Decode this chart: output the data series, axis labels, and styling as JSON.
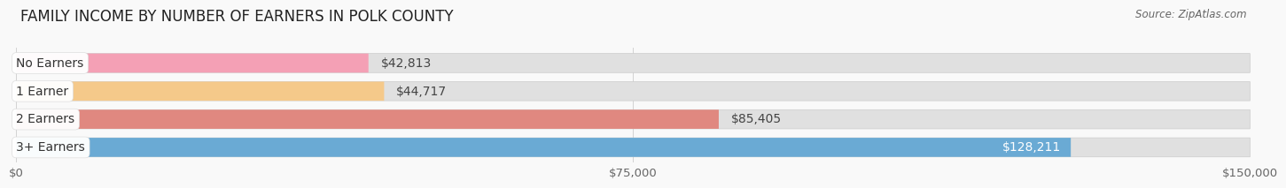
{
  "title": "FAMILY INCOME BY NUMBER OF EARNERS IN POLK COUNTY",
  "source": "Source: ZipAtlas.com",
  "categories": [
    "No Earners",
    "1 Earner",
    "2 Earners",
    "3+ Earners"
  ],
  "values": [
    42813,
    44717,
    85405,
    128211
  ],
  "bar_colors": [
    "#f4a0b5",
    "#f5c98a",
    "#e08880",
    "#6aaad4"
  ],
  "bar_bg_color": "#e0e0e0",
  "label_colors": [
    "#333333",
    "#333333",
    "#333333",
    "#ffffff"
  ],
  "x_max": 150000,
  "x_ticks": [
    0,
    75000,
    150000
  ],
  "x_tick_labels": [
    "$0",
    "$75,000",
    "$150,000"
  ],
  "background_color": "#f9f9f9",
  "bar_height": 0.68,
  "label_fontsize": 10,
  "value_fontsize": 10,
  "title_fontsize": 12
}
